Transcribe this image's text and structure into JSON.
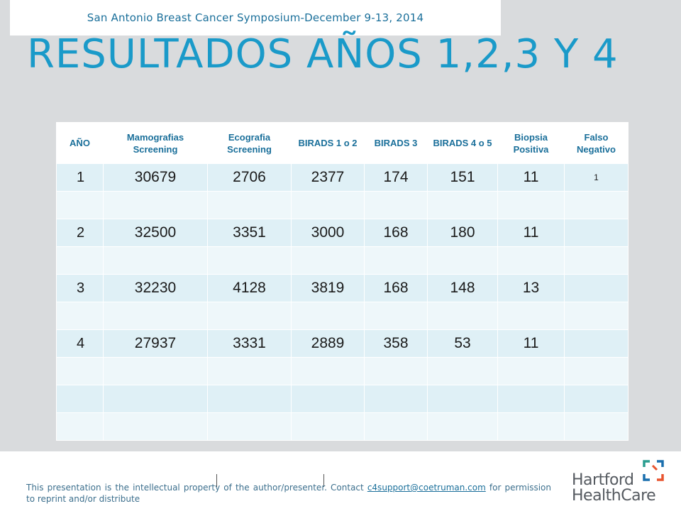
{
  "header": {
    "symposium": "San Antonio Breast Cancer Symposium-December 9-13, 2014",
    "title": "RESULTADOS AÑOS 1,2,3 Y 4"
  },
  "table": {
    "columns": [
      "AÑO",
      "Mamografias Screening",
      "Ecografia Screening",
      "BIRADS 1 o 2",
      "BIRADS 3",
      "BIRADS 4 o 5",
      "Biopsia Positiva",
      "Falso Negativo"
    ],
    "rows": [
      [
        "1",
        "30679",
        "2706",
        "2377",
        "174",
        "151",
        "11",
        "1"
      ],
      [
        "",
        "",
        "",
        "",
        "",
        "",
        "",
        ""
      ],
      [
        "2",
        "32500",
        "3351",
        "3000",
        "168",
        "180",
        "11",
        ""
      ],
      [
        "",
        "",
        "",
        "",
        "",
        "",
        "",
        ""
      ],
      [
        "3",
        "32230",
        "4128",
        "3819",
        "168",
        "148",
        "13",
        ""
      ],
      [
        "",
        "",
        "",
        "",
        "",
        "",
        "",
        ""
      ],
      [
        "4",
        "27937",
        "3331",
        "2889",
        "358",
        "53",
        "11",
        ""
      ],
      [
        "",
        "",
        "",
        "",
        "",
        "",
        "",
        ""
      ],
      [
        "",
        "",
        "",
        "",
        "",
        "",
        "",
        ""
      ],
      [
        "",
        "",
        "",
        "",
        "",
        "",
        "",
        ""
      ]
    ]
  },
  "footer": {
    "disclaimer_before": "This presentation is the intellectual property of the author/presenter. Contact ",
    "email": "c4support@coetruman.com",
    "disclaimer_after": " for permission to reprint and/or distribute",
    "logo_line1": "Hartford",
    "logo_line2": "HealthCare"
  },
  "colors": {
    "title": "#1a9ac9",
    "header_text": "#1a6f9a",
    "row_odd": "#dff0f6",
    "row_even": "#eef7fa",
    "background": "#d9dbdd"
  }
}
